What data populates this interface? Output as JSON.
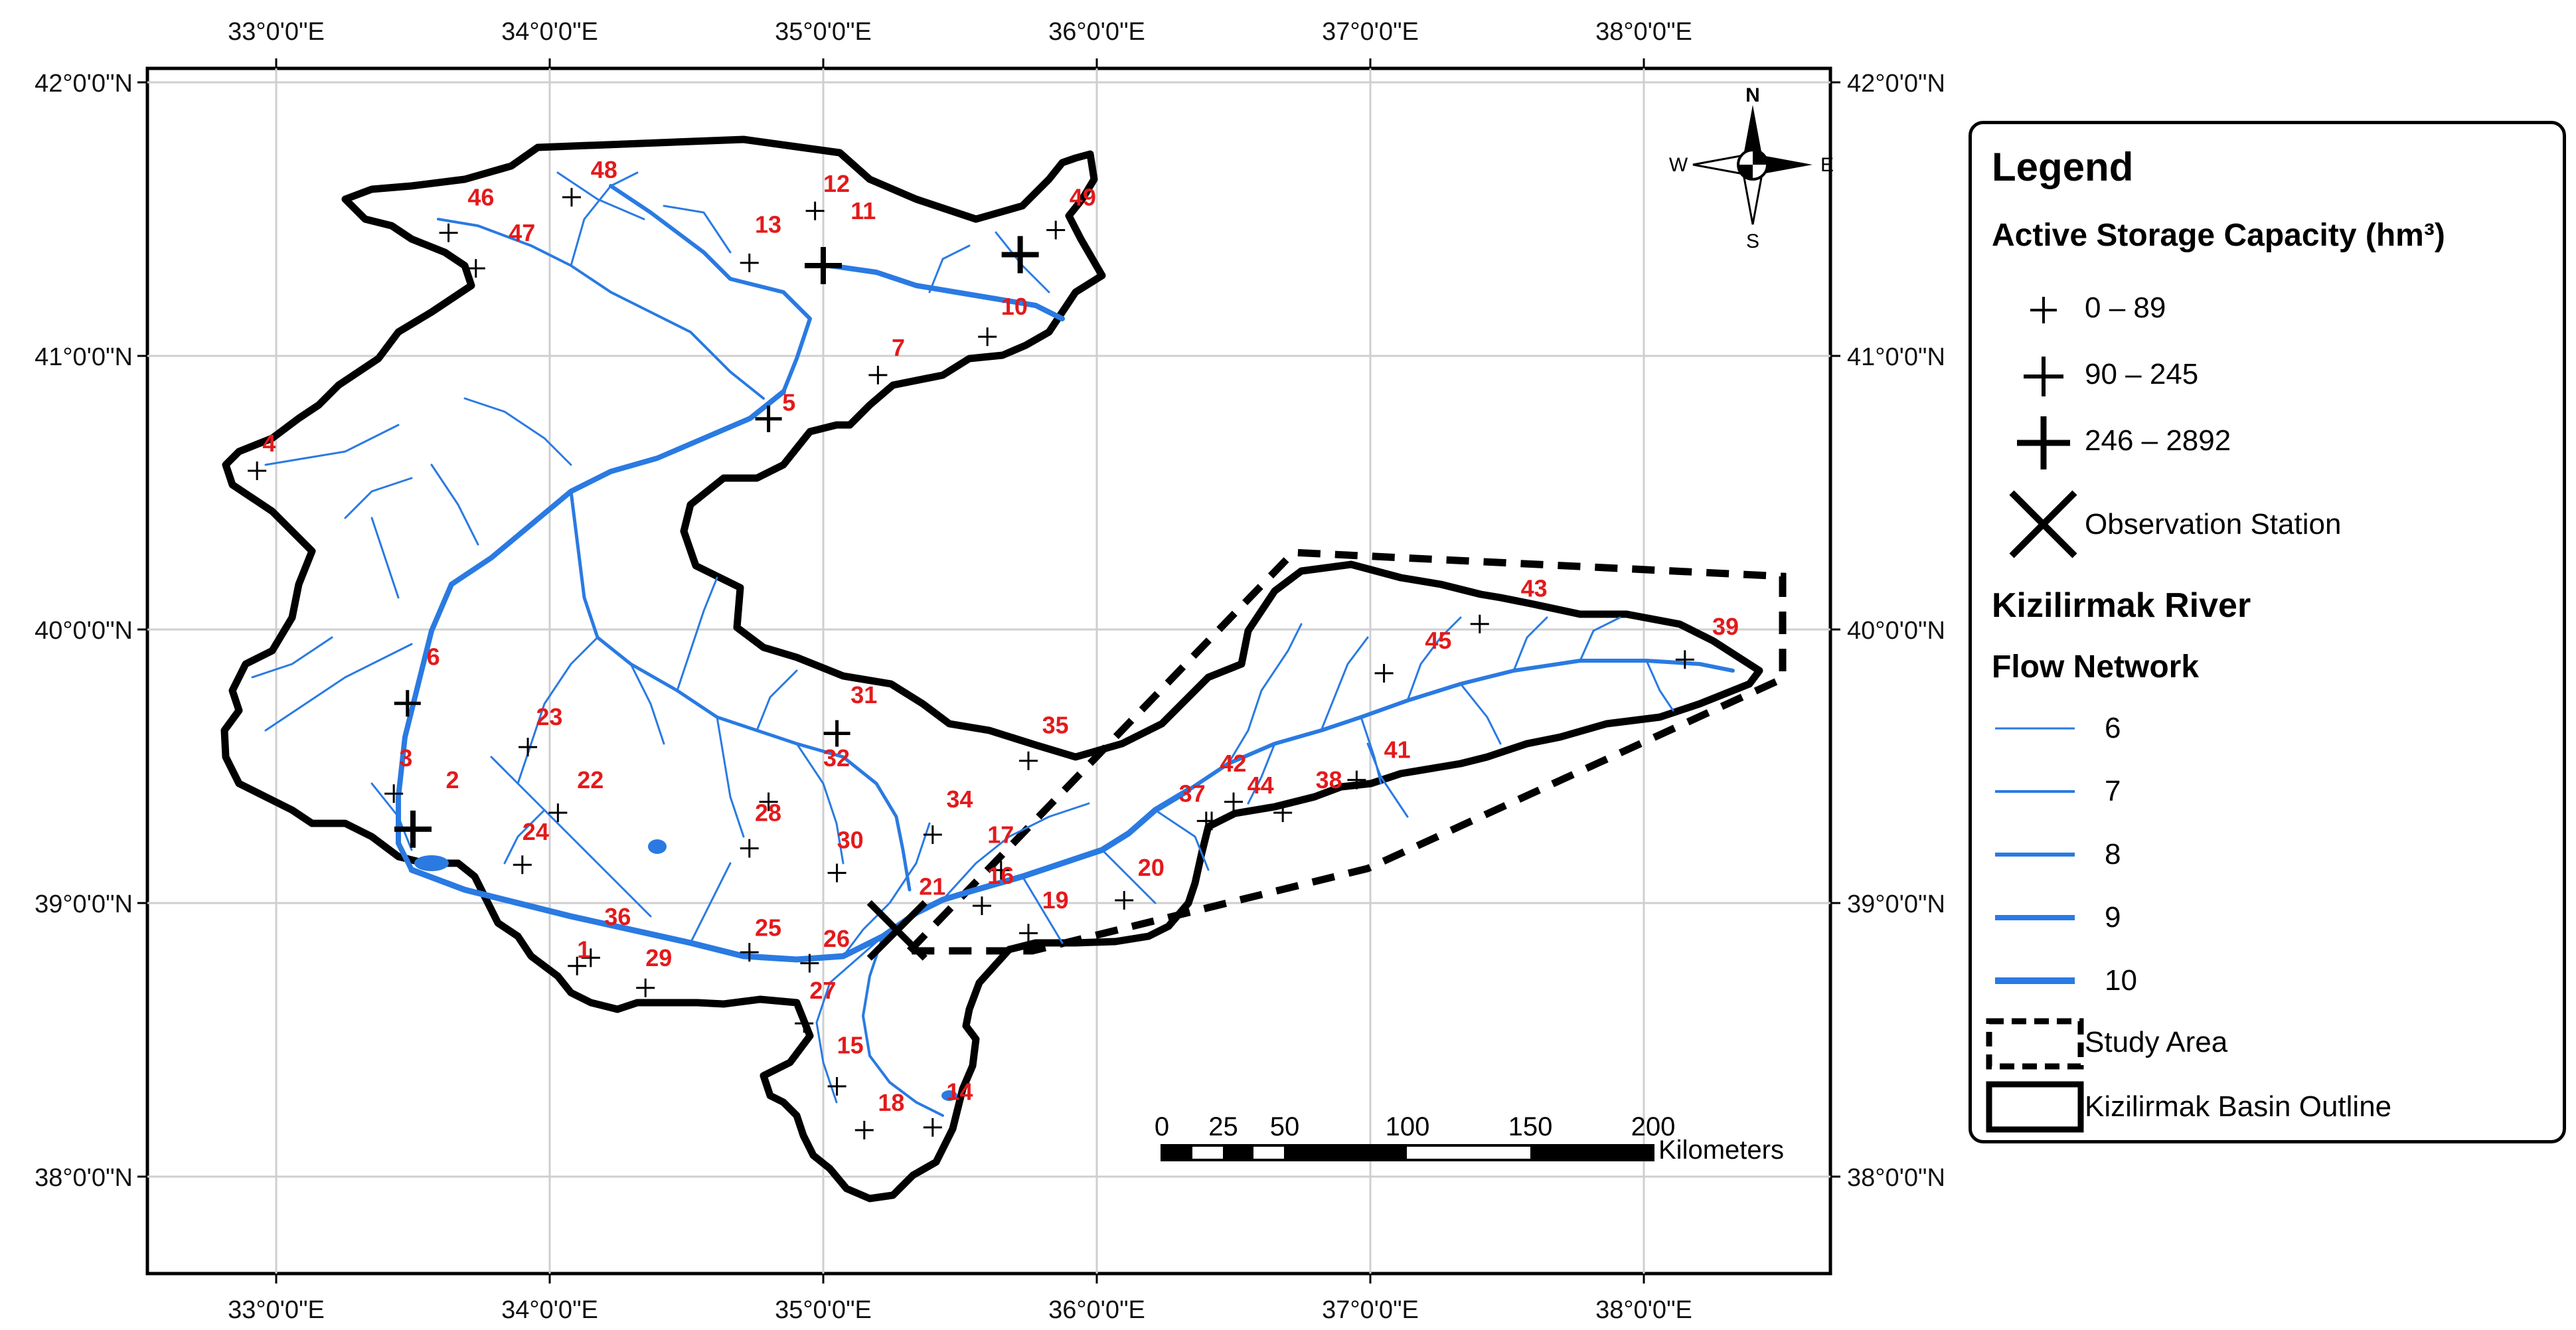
{
  "axes": {
    "lon_labels": [
      "33°0'0\"E",
      "34°0'0\"E",
      "35°0'0\"E",
      "36°0'0\"E",
      "37°0'0\"E",
      "38°0'0\"E"
    ],
    "lat_labels": [
      "42°0'0\"N",
      "41°0'0\"N",
      "40°0'0\"N",
      "39°0'0\"N",
      "38°0'0\"N"
    ]
  },
  "north_arrow": {
    "n": "N",
    "s": "S",
    "e": "E",
    "w": "W"
  },
  "reservoirs": [
    {
      "id": "1",
      "lon": 34.1,
      "lat": 38.8
    },
    {
      "id": "2",
      "lon": 33.62,
      "lat": 39.42
    },
    {
      "id": "3",
      "lon": 33.45,
      "lat": 39.5
    },
    {
      "id": "4",
      "lon": 32.95,
      "lat": 40.65
    },
    {
      "id": "5",
      "lon": 34.85,
      "lat": 40.8
    },
    {
      "id": "6",
      "lon": 33.55,
      "lat": 39.87
    },
    {
      "id": "7",
      "lon": 35.25,
      "lat": 41.0
    },
    {
      "id": "10",
      "lon": 35.65,
      "lat": 41.15
    },
    {
      "id": "11",
      "lon": 35.1,
      "lat": 41.5
    },
    {
      "id": "12",
      "lon": 35.0,
      "lat": 41.6
    },
    {
      "id": "13",
      "lon": 34.75,
      "lat": 41.45
    },
    {
      "id": "14",
      "lon": 35.45,
      "lat": 38.28
    },
    {
      "id": "15",
      "lon": 35.05,
      "lat": 38.45
    },
    {
      "id": "16",
      "lon": 35.6,
      "lat": 39.07
    },
    {
      "id": "17",
      "lon": 35.6,
      "lat": 39.22
    },
    {
      "id": "18",
      "lon": 35.2,
      "lat": 38.24
    },
    {
      "id": "19",
      "lon": 35.8,
      "lat": 38.98
    },
    {
      "id": "20",
      "lon": 36.15,
      "lat": 39.1
    },
    {
      "id": "21",
      "lon": 35.35,
      "lat": 39.03
    },
    {
      "id": "22",
      "lon": 34.1,
      "lat": 39.42
    },
    {
      "id": "23",
      "lon": 33.95,
      "lat": 39.65
    },
    {
      "id": "24",
      "lon": 33.9,
      "lat": 39.23
    },
    {
      "id": "25",
      "lon": 34.75,
      "lat": 38.88
    },
    {
      "id": "26",
      "lon": 35.0,
      "lat": 38.84
    },
    {
      "id": "27",
      "lon": 34.95,
      "lat": 38.65
    },
    {
      "id": "28",
      "lon": 34.75,
      "lat": 39.3
    },
    {
      "id": "29",
      "lon": 34.35,
      "lat": 38.77
    },
    {
      "id": "30",
      "lon": 35.05,
      "lat": 39.2
    },
    {
      "id": "31",
      "lon": 35.1,
      "lat": 39.73
    },
    {
      "id": "32",
      "lon": 35.0,
      "lat": 39.5
    },
    {
      "id": "34",
      "lon": 35.45,
      "lat": 39.35
    },
    {
      "id": "35",
      "lon": 35.8,
      "lat": 39.62
    },
    {
      "id": "36",
      "lon": 34.2,
      "lat": 38.92
    },
    {
      "id": "37",
      "lon": 36.3,
      "lat": 39.37
    },
    {
      "id": "38",
      "lon": 36.8,
      "lat": 39.42
    },
    {
      "id": "39",
      "lon": 38.25,
      "lat": 39.98
    },
    {
      "id": "41",
      "lon": 37.05,
      "lat": 39.53
    },
    {
      "id": "42",
      "lon": 36.45,
      "lat": 39.48
    },
    {
      "id": "43",
      "lon": 37.55,
      "lat": 40.12
    },
    {
      "id": "44",
      "lon": 36.55,
      "lat": 39.4
    },
    {
      "id": "45",
      "lon": 37.2,
      "lat": 39.93
    },
    {
      "id": "46",
      "lon": 33.7,
      "lat": 41.55
    },
    {
      "id": "47",
      "lon": 33.85,
      "lat": 41.42
    },
    {
      "id": "48",
      "lon": 34.15,
      "lat": 41.65
    },
    {
      "id": "49",
      "lon": 35.9,
      "lat": 41.55
    }
  ],
  "reservoir_symbols": [
    {
      "lon": 34.1,
      "lat": 38.77,
      "size": "small"
    },
    {
      "lon": 34.15,
      "lat": 38.8,
      "size": "small"
    },
    {
      "lon": 33.43,
      "lat": 39.4,
      "size": "small"
    },
    {
      "lon": 33.5,
      "lat": 39.27,
      "size": "large"
    },
    {
      "lon": 33.48,
      "lat": 39.73,
      "size": "medium"
    },
    {
      "lon": 32.93,
      "lat": 40.58,
      "size": "small"
    },
    {
      "lon": 34.8,
      "lat": 40.77,
      "size": "medium"
    },
    {
      "lon": 35.2,
      "lat": 40.93,
      "size": "small"
    },
    {
      "lon": 35.6,
      "lat": 41.07,
      "size": "small"
    },
    {
      "lon": 35.72,
      "lat": 41.37,
      "size": "large"
    },
    {
      "lon": 35.0,
      "lat": 41.33,
      "size": "large"
    },
    {
      "lon": 34.97,
      "lat": 41.53,
      "size": "small"
    },
    {
      "lon": 34.73,
      "lat": 41.34,
      "size": "small"
    },
    {
      "lon": 35.85,
      "lat": 41.46,
      "size": "small"
    },
    {
      "lon": 34.08,
      "lat": 41.58,
      "size": "small"
    },
    {
      "lon": 33.63,
      "lat": 41.45,
      "size": "small"
    },
    {
      "lon": 33.73,
      "lat": 41.32,
      "size": "small"
    },
    {
      "lon": 33.92,
      "lat": 39.57,
      "size": "small"
    },
    {
      "lon": 34.03,
      "lat": 39.33,
      "size": "small"
    },
    {
      "lon": 33.9,
      "lat": 39.14,
      "size": "small"
    },
    {
      "lon": 34.35,
      "lat": 38.69,
      "size": "small"
    },
    {
      "lon": 34.73,
      "lat": 38.82,
      "size": "small"
    },
    {
      "lon": 34.95,
      "lat": 38.78,
      "size": "small"
    },
    {
      "lon": 34.93,
      "lat": 38.56,
      "size": "small"
    },
    {
      "lon": 34.73,
      "lat": 39.2,
      "size": "small"
    },
    {
      "lon": 34.8,
      "lat": 39.37,
      "size": "small"
    },
    {
      "lon": 35.05,
      "lat": 39.11,
      "size": "small"
    },
    {
      "lon": 35.05,
      "lat": 39.62,
      "size": "medium"
    },
    {
      "lon": 35.4,
      "lat": 39.25,
      "size": "small"
    },
    {
      "lon": 35.75,
      "lat": 39.52,
      "size": "small"
    },
    {
      "lon": 35.58,
      "lat": 38.99,
      "size": "small"
    },
    {
      "lon": 35.65,
      "lat": 39.12,
      "size": "small"
    },
    {
      "lon": 35.75,
      "lat": 38.89,
      "size": "small"
    },
    {
      "lon": 36.1,
      "lat": 39.01,
      "size": "small"
    },
    {
      "lon": 35.05,
      "lat": 38.33,
      "size": "small"
    },
    {
      "lon": 35.15,
      "lat": 38.17,
      "size": "small"
    },
    {
      "lon": 35.4,
      "lat": 38.18,
      "size": "small"
    },
    {
      "lon": 36.4,
      "lat": 39.3,
      "size": "small"
    },
    {
      "lon": 36.42,
      "lat": 39.3,
      "size": "small"
    },
    {
      "lon": 36.5,
      "lat": 39.37,
      "size": "small"
    },
    {
      "lon": 36.68,
      "lat": 39.33,
      "size": "small"
    },
    {
      "lon": 36.95,
      "lat": 39.45,
      "size": "small"
    },
    {
      "lon": 37.05,
      "lat": 39.84,
      "size": "small"
    },
    {
      "lon": 37.4,
      "lat": 40.02,
      "size": "small"
    },
    {
      "lon": 38.15,
      "lat": 39.89,
      "size": "small"
    }
  ],
  "observation_station": {
    "lon": 35.27,
    "lat": 38.9
  },
  "scale_bar": {
    "ticks": [
      "0",
      "25",
      "50",
      "100",
      "150",
      "200"
    ],
    "unit": "Kilometers"
  },
  "legend": {
    "title": "Legend",
    "capacity_title": "Active Storage Capacity (hm³)",
    "capacity_classes": [
      "0 – 89",
      "90 – 245",
      "246 – 2892"
    ],
    "station_label": "Observation Station",
    "river_title_1": "Kizilirmak River",
    "river_title_2": "Flow Network",
    "flow_orders": [
      "6",
      "7",
      "8",
      "9",
      "10"
    ],
    "study_area_label": "Study Area",
    "basin_label": "Kizilirmak Basin Outline"
  },
  "colors": {
    "river": "#2a7ae2",
    "label": "#e31a1c",
    "outline": "#000000",
    "grid": "#cccccc"
  }
}
